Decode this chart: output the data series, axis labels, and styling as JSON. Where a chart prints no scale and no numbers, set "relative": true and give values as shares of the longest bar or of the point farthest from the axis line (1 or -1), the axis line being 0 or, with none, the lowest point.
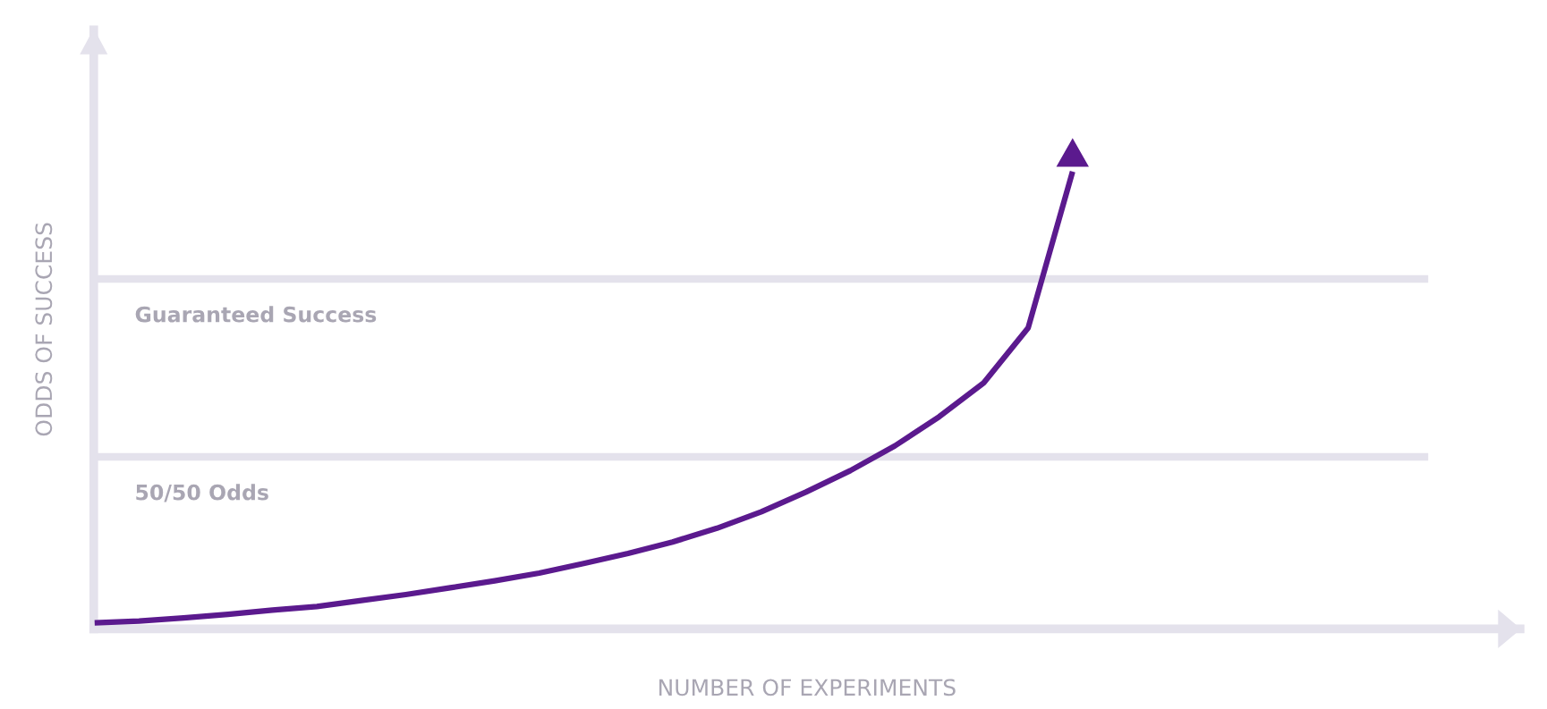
{
  "chart_data": {
    "type": "line",
    "relative": true,
    "xlabel": "NUMBER OF EXPERIMENTS",
    "ylabel": "ODDS OF SUCCESS",
    "categories": [
      null,
      null,
      null,
      null,
      null,
      null,
      null,
      null,
      null,
      null,
      null,
      null,
      null,
      null,
      null,
      null,
      null,
      null,
      null,
      null,
      null,
      null,
      null,
      null,
      null,
      null,
      null,
      null,
      null,
      null,
      null
    ],
    "series": [
      {
        "color": "#5b1a8e",
        "values": [
          0.013,
          0.017,
          0.024,
          0.032,
          0.041,
          0.049,
          0.062,
          0.075,
          0.09,
          0.105,
          0.122,
          0.143,
          0.165,
          0.19,
          0.22,
          0.256,
          0.299,
          0.346,
          0.4,
          0.464,
          0.538,
          0.658,
          1.0,
          null,
          null,
          null,
          null,
          null,
          null,
          null,
          null
        ]
      }
    ],
    "ref_lines": [
      {
        "axis": "y",
        "value": 0.765,
        "label": "Guaranteed Success",
        "color": "#e4e2ec"
      },
      {
        "axis": "y",
        "value": 0.376,
        "label": "50/50 Odds",
        "color": "#e4e2ec"
      }
    ],
    "legend": false
  }
}
